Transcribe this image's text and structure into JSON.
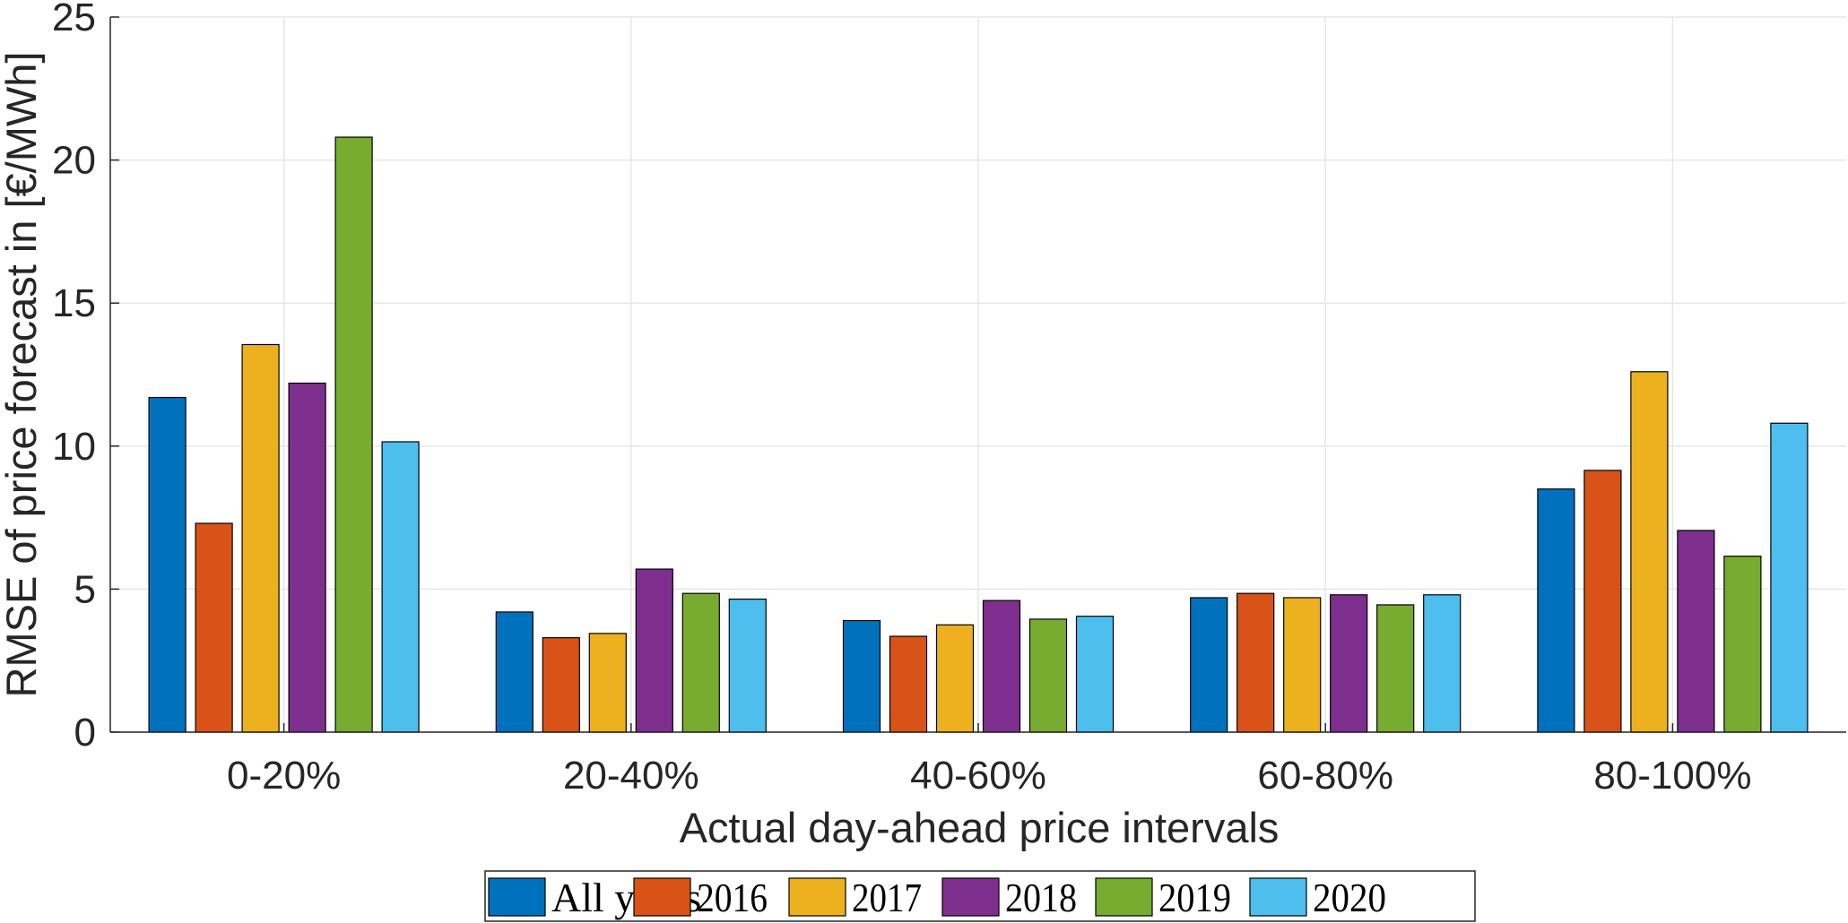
{
  "chart_data": {
    "type": "bar",
    "title": "",
    "xlabel": "Actual day-ahead price intervals",
    "ylabel": "RMSE of price forecast in [€/MWh]",
    "ylim": [
      0,
      25
    ],
    "yticks": [
      0,
      5,
      10,
      15,
      20,
      25
    ],
    "grid": true,
    "legend_position": "bottom-center",
    "categories": [
      "0-20%",
      "20-40%",
      "40-60%",
      "60-80%",
      "80-100%"
    ],
    "series": [
      {
        "name": "All years",
        "color": "#0072BD",
        "values": [
          11.7,
          4.2,
          3.9,
          4.7,
          8.5
        ]
      },
      {
        "name": "2016",
        "color": "#D95319",
        "values": [
          7.3,
          3.3,
          3.35,
          4.85,
          9.15
        ]
      },
      {
        "name": "2017",
        "color": "#EDB120",
        "values": [
          13.55,
          3.45,
          3.75,
          4.7,
          12.6
        ]
      },
      {
        "name": "2018",
        "color": "#7E2F8E",
        "values": [
          12.2,
          5.7,
          4.6,
          4.8,
          7.05
        ]
      },
      {
        "name": "2019",
        "color": "#77AC30",
        "values": [
          20.8,
          4.85,
          3.95,
          4.45,
          6.15
        ]
      },
      {
        "name": "2020",
        "color": "#4DBEEE",
        "values": [
          10.15,
          4.65,
          4.05,
          4.8,
          10.8
        ]
      }
    ]
  }
}
